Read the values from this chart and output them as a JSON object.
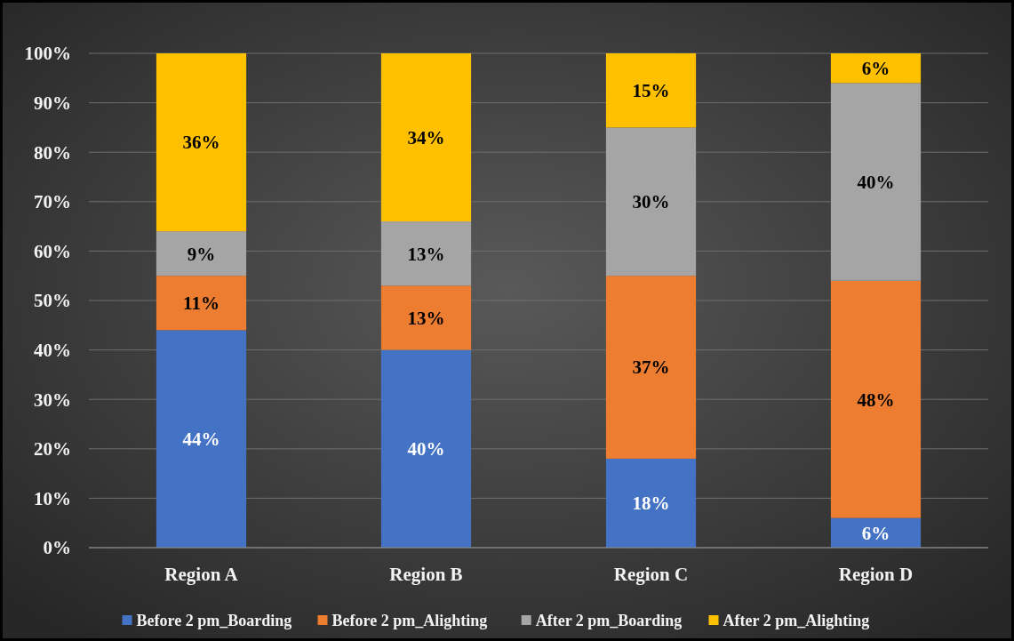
{
  "chart_data": {
    "type": "bar",
    "stacked": true,
    "categories": [
      "Region A",
      "Region B",
      "Region C",
      "Region D"
    ],
    "series": [
      {
        "name": "Before 2 pm_Boarding",
        "color": "#4472c4",
        "values": [
          44,
          40,
          18,
          6
        ],
        "value_labels": [
          "44%",
          "40%",
          "18%",
          "6%"
        ]
      },
      {
        "name": "Before 2 pm_Alighting",
        "color": "#ed7d31",
        "values": [
          11,
          13,
          37,
          48
        ],
        "value_labels": [
          "11%",
          "13%",
          "37%",
          "48%"
        ]
      },
      {
        "name": "After 2 pm_Boarding",
        "color": "#a5a5a5",
        "values": [
          9,
          13,
          30,
          40
        ],
        "value_labels": [
          "9%",
          "13%",
          "30%",
          "40%"
        ]
      },
      {
        "name": "After 2 pm_Alighting",
        "color": "#ffc000",
        "values": [
          36,
          34,
          15,
          6
        ],
        "value_labels": [
          "36%",
          "34%",
          "15%",
          "6%"
        ]
      }
    ],
    "ylim": [
      0,
      100
    ],
    "yticks": [
      {
        "value": 0,
        "label": "0%"
      },
      {
        "value": 10,
        "label": "10%"
      },
      {
        "value": 20,
        "label": "20%"
      },
      {
        "value": 30,
        "label": "30%"
      },
      {
        "value": 40,
        "label": "40%"
      },
      {
        "value": 50,
        "label": "50%"
      },
      {
        "value": 60,
        "label": "60%"
      },
      {
        "value": 70,
        "label": "70%"
      },
      {
        "value": 80,
        "label": "80%"
      },
      {
        "value": 90,
        "label": "90%"
      },
      {
        "value": 100,
        "label": "100%"
      }
    ],
    "grid": "y",
    "legend": "bottom"
  }
}
